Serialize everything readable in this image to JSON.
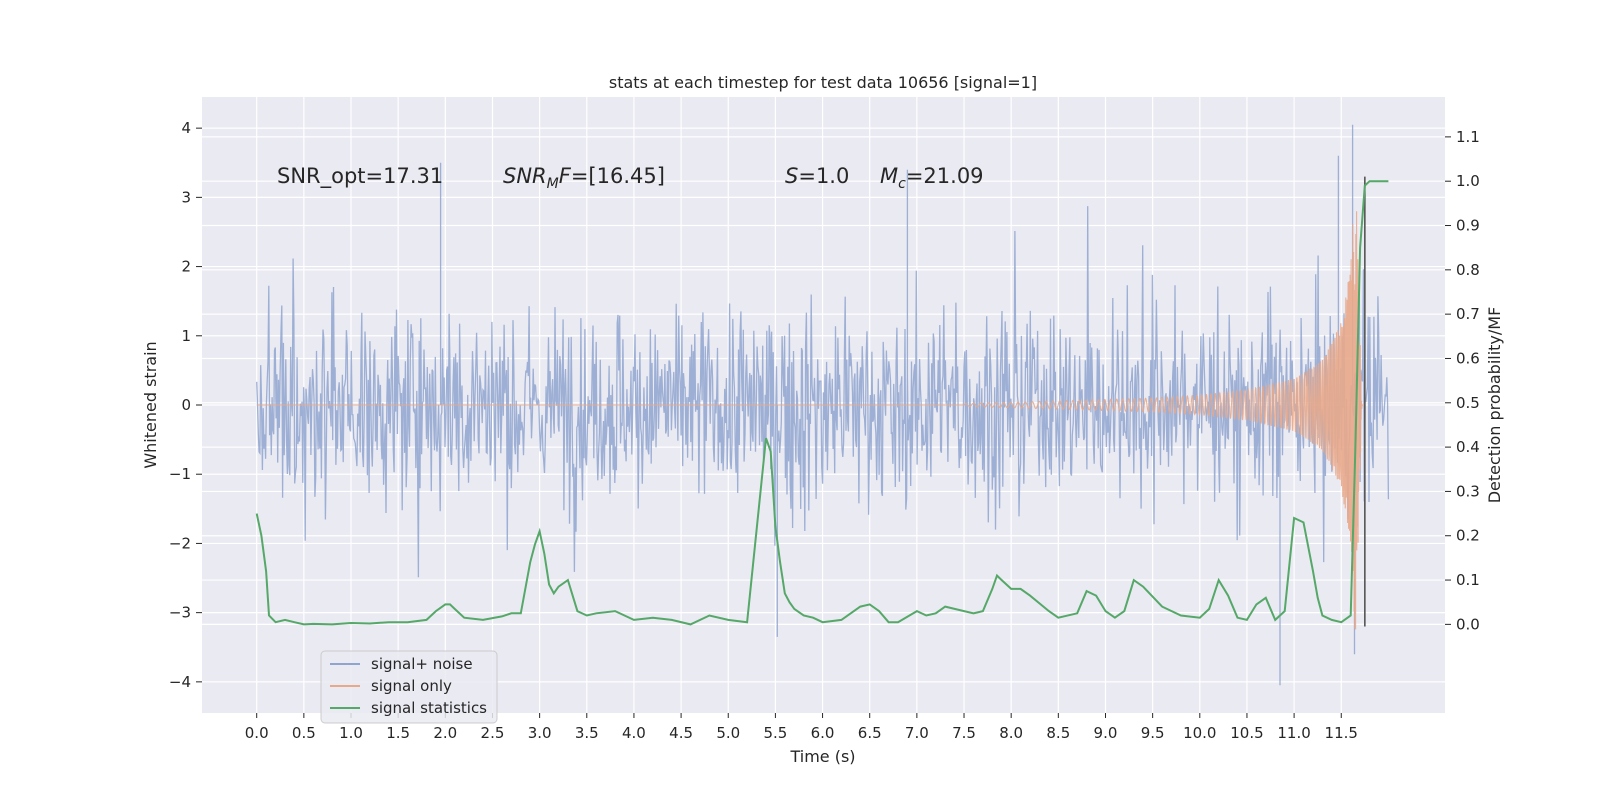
{
  "chart_data": {
    "type": "line",
    "title": "stats at each timestep for test data 10656 [signal=1]",
    "xlabel": "Time (s)",
    "ylabel": "Whitened strain",
    "y2label": "Detection probability/MF",
    "xlim": [
      -0.58,
      12.6
    ],
    "ylim": [
      -4.45,
      4.45
    ],
    "y2lim": [
      -0.2,
      1.19
    ],
    "x_ticks": [
      "0.0",
      "0.5",
      "1.0",
      "1.5",
      "2.0",
      "2.5",
      "3.0",
      "3.5",
      "4.0",
      "4.5",
      "5.0",
      "5.5",
      "6.0",
      "6.5",
      "7.0",
      "7.5",
      "8.0",
      "8.5",
      "9.0",
      "9.5",
      "10.0",
      "10.5",
      "11.0",
      "11.5"
    ],
    "y_ticks": [
      "4",
      "3",
      "2",
      "1",
      "0",
      "−1",
      "−2",
      "−3",
      "−4"
    ],
    "y2_ticks": [
      "1.1",
      "1.0",
      "0.9",
      "0.8",
      "0.7",
      "0.6",
      "0.5",
      "0.4",
      "0.3",
      "0.2",
      "0.1",
      "0.0"
    ],
    "grid": true,
    "legend_placement": "lower-left",
    "annotations": [
      {
        "text": "SNR_opt=17.31"
      },
      {
        "math": true,
        "base": "SNR",
        "sub": "M",
        "rest": "F=[16.45]"
      },
      {
        "math": true,
        "base": "S",
        "sub": "",
        "rest": "=1.0"
      },
      {
        "math": true,
        "base": "M",
        "sub": "c",
        "rest": "=21.09"
      }
    ],
    "series": [
      {
        "name": "signal+ noise",
        "axis": "left",
        "color": "#8fa5cf",
        "description_of_values": "whitened noisy strain, dense samples from 0 to 12 s",
        "x_range": [
          0.0,
          12.0
        ],
        "typical_envelope": [
          -2.2,
          2.2
        ],
        "peaks": [
          {
            "x": 11.62,
            "y": 4.05
          },
          {
            "x": 11.47,
            "y": 3.6
          },
          {
            "x": 10.85,
            "y": -4.05
          },
          {
            "x": 11.64,
            "y": -3.6
          },
          {
            "x": 5.52,
            "y": -3.35
          },
          {
            "x": 1.95,
            "y": 3.5
          },
          {
            "x": 6.9,
            "y": 3.4
          }
        ]
      },
      {
        "name": "signal only",
        "axis": "left",
        "color": "#e8a98b",
        "description_of_values": "chirp waveform growing toward merger",
        "x_range": [
          7.5,
          11.75
        ],
        "amplitude_points": [
          [
            7.5,
            0.02
          ],
          [
            8.5,
            0.06
          ],
          [
            9.5,
            0.1
          ],
          [
            10.0,
            0.14
          ],
          [
            10.5,
            0.22
          ],
          [
            11.0,
            0.38
          ],
          [
            11.3,
            0.65
          ],
          [
            11.5,
            1.2
          ],
          [
            11.6,
            2.0
          ],
          [
            11.65,
            3.4
          ],
          [
            11.72,
            0.0
          ]
        ]
      },
      {
        "name": "signal statistics",
        "axis": "right",
        "color": "#55a868",
        "x": [
          0.0,
          0.05,
          0.1,
          0.13,
          0.2,
          0.3,
          0.4,
          0.5,
          0.6,
          0.8,
          1.0,
          1.2,
          1.4,
          1.6,
          1.8,
          1.9,
          2.0,
          2.05,
          2.1,
          2.2,
          2.4,
          2.6,
          2.7,
          2.8,
          2.9,
          2.95,
          3.0,
          3.05,
          3.1,
          3.15,
          3.2,
          3.3,
          3.4,
          3.5,
          3.6,
          3.8,
          3.9,
          4.0,
          4.2,
          4.4,
          4.6,
          4.8,
          5.0,
          5.2,
          5.4,
          5.45,
          5.5,
          5.55,
          5.6,
          5.65,
          5.7,
          5.8,
          5.9,
          6.0,
          6.2,
          6.4,
          6.5,
          6.6,
          6.7,
          6.8,
          7.0,
          7.1,
          7.2,
          7.3,
          7.4,
          7.6,
          7.7,
          7.8,
          7.85,
          7.9,
          8.0,
          8.1,
          8.2,
          8.4,
          8.5,
          8.7,
          8.8,
          8.9,
          9.0,
          9.1,
          9.2,
          9.3,
          9.4,
          9.6,
          9.8,
          10.0,
          10.1,
          10.2,
          10.3,
          10.4,
          10.5,
          10.6,
          10.7,
          10.8,
          10.9,
          11.0,
          11.1,
          11.2,
          11.25,
          11.3,
          11.4,
          11.5,
          11.6,
          11.65,
          11.7,
          11.75,
          11.8,
          11.85,
          11.9,
          11.95,
          12.0
        ],
        "values": [
          0.25,
          0.2,
          0.12,
          0.02,
          0.005,
          0.01,
          0.005,
          0.0,
          0.001,
          0.0,
          0.003,
          0.002,
          0.005,
          0.005,
          0.01,
          0.03,
          0.045,
          0.045,
          0.035,
          0.015,
          0.01,
          0.018,
          0.025,
          0.025,
          0.14,
          0.18,
          0.21,
          0.16,
          0.09,
          0.07,
          0.085,
          0.1,
          0.03,
          0.02,
          0.025,
          0.03,
          0.02,
          0.01,
          0.015,
          0.01,
          0.0,
          0.02,
          0.01,
          0.005,
          0.42,
          0.39,
          0.22,
          0.14,
          0.07,
          0.05,
          0.035,
          0.02,
          0.015,
          0.005,
          0.01,
          0.04,
          0.045,
          0.03,
          0.005,
          0.005,
          0.03,
          0.02,
          0.025,
          0.04,
          0.035,
          0.025,
          0.03,
          0.08,
          0.11,
          0.1,
          0.08,
          0.08,
          0.065,
          0.03,
          0.015,
          0.025,
          0.075,
          0.065,
          0.03,
          0.015,
          0.03,
          0.1,
          0.085,
          0.04,
          0.02,
          0.015,
          0.035,
          0.1,
          0.065,
          0.015,
          0.01,
          0.045,
          0.06,
          0.01,
          0.03,
          0.24,
          0.23,
          0.12,
          0.06,
          0.02,
          0.01,
          0.005,
          0.02,
          0.4,
          0.85,
          0.99,
          1.0,
          1.0,
          1.0,
          1.0,
          1.0
        ]
      }
    ],
    "vertical_line": {
      "x": 11.75,
      "y_from": -3.2,
      "y_to": 3.3,
      "color": "#555555"
    }
  }
}
